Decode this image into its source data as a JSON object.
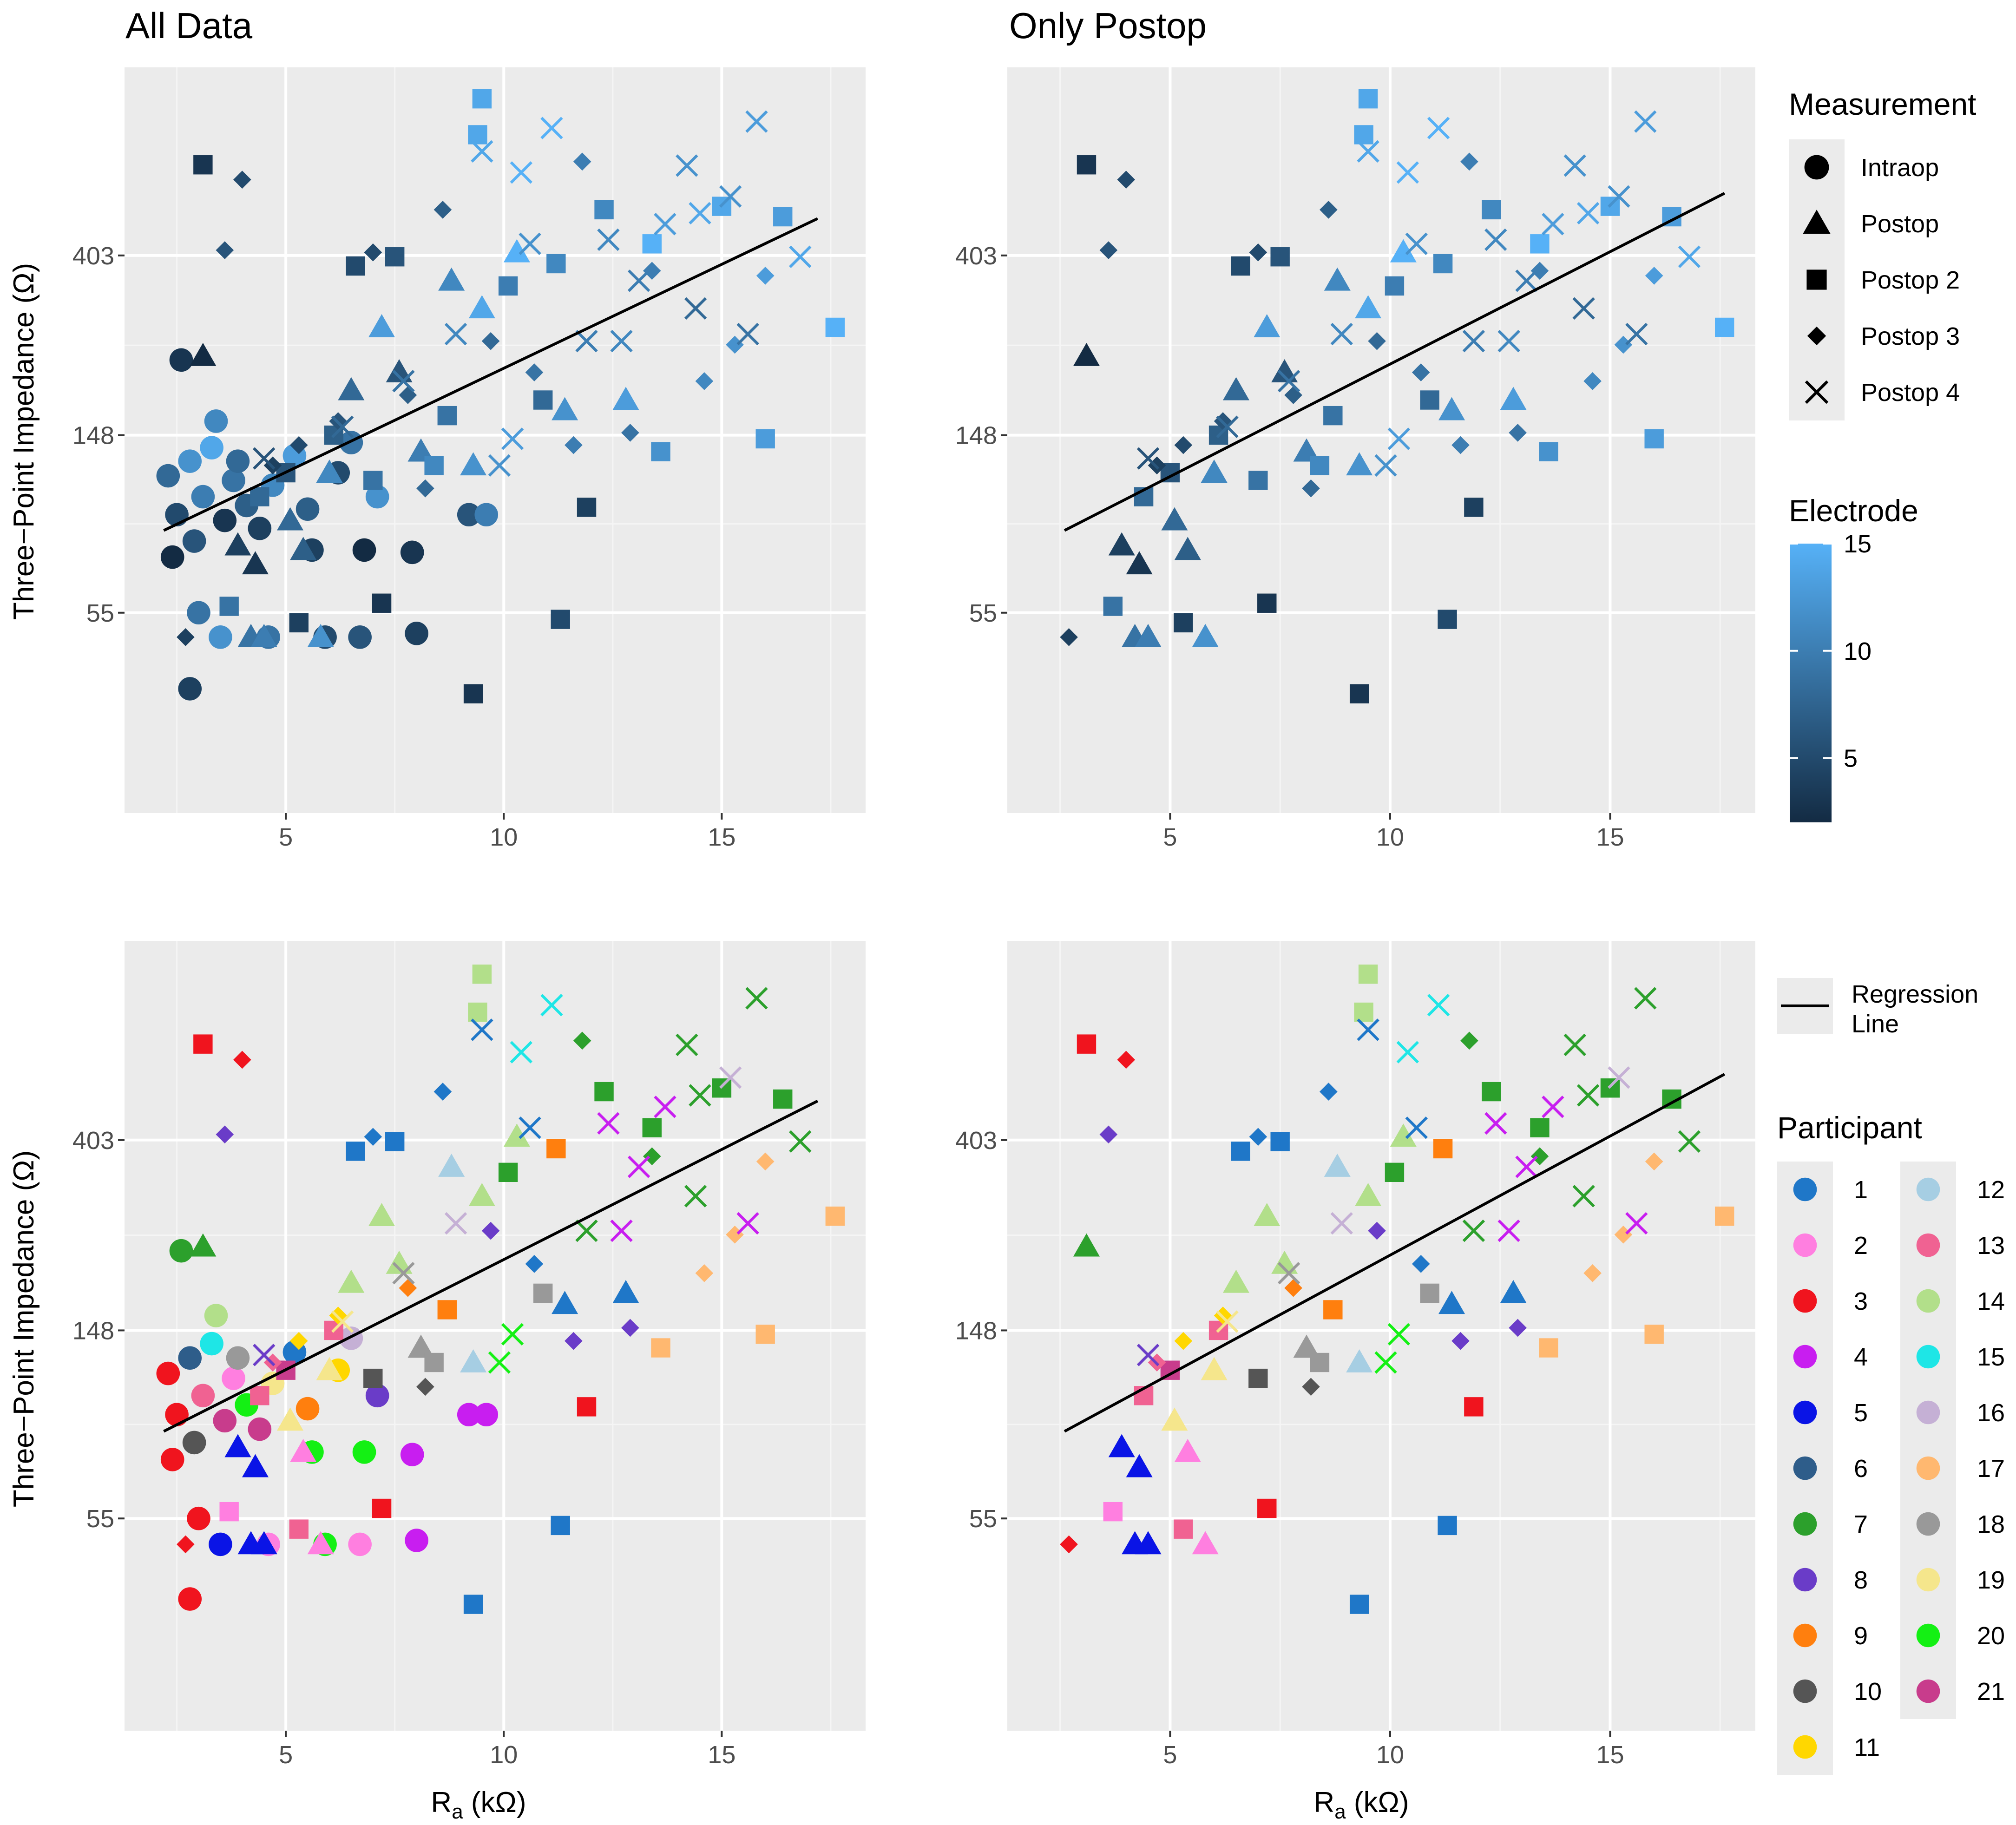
{
  "figure": {
    "panel_titles": [
      "All Data",
      "Only Postop",
      "",
      ""
    ],
    "x_axis_label_main": "R",
    "x_axis_label_sub": "a",
    "x_axis_label_unit": " (kΩ)",
    "y_axis_label": "Three−Point Impedance (Ω)"
  },
  "legends": {
    "measurement": {
      "title": "Measurement",
      "items": [
        {
          "label": "Intraop",
          "shape": "circle"
        },
        {
          "label": "Postop",
          "shape": "triangle"
        },
        {
          "label": "Postop 2",
          "shape": "square"
        },
        {
          "label": "Postop 3",
          "shape": "diamond"
        },
        {
          "label": "Postop 4",
          "shape": "x"
        }
      ]
    },
    "electrode": {
      "title": "Electrode",
      "ticks": [
        {
          "value": 15,
          "label": "15"
        },
        {
          "value": 10,
          "label": "10"
        },
        {
          "value": 5,
          "label": "5"
        }
      ],
      "range": [
        2,
        15
      ],
      "colors": [
        "#132B43",
        "#56B1F7"
      ]
    },
    "regression": {
      "label_line1": "Regression",
      "label_line2": "Line"
    },
    "participant": {
      "title": "Participant",
      "items": [
        {
          "label": "1",
          "color": "#1f77c8"
        },
        {
          "label": "2",
          "color": "#ff7fe0"
        },
        {
          "label": "3",
          "color": "#f0141e"
        },
        {
          "label": "4",
          "color": "#c81ef0"
        },
        {
          "label": "5",
          "color": "#0a14e6"
        },
        {
          "label": "6",
          "color": "#2e5d8a"
        },
        {
          "label": "7",
          "color": "#2ca02c"
        },
        {
          "label": "8",
          "color": "#6a3cc8"
        },
        {
          "label": "9",
          "color": "#ff7f0e"
        },
        {
          "label": "10",
          "color": "#555555"
        },
        {
          "label": "11",
          "color": "#ffd700"
        },
        {
          "label": "12",
          "color": "#a6cee3"
        },
        {
          "label": "13",
          "color": "#f06292"
        },
        {
          "label": "14",
          "color": "#b2df8a"
        },
        {
          "label": "15",
          "color": "#1ee6e6"
        },
        {
          "label": "16",
          "color": "#c5b0d5"
        },
        {
          "label": "17",
          "color": "#ffb870"
        },
        {
          "label": "18",
          "color": "#999999"
        },
        {
          "label": "19",
          "color": "#f5e68c"
        },
        {
          "label": "20",
          "color": "#14f014"
        },
        {
          "label": "21",
          "color": "#c83c8c"
        }
      ]
    }
  },
  "chart_data": [
    {
      "type": "scatter",
      "title": "All Data",
      "xlabel": "Ra (kΩ)",
      "ylabel": "Three−Point Impedance (Ω)",
      "xlim": [
        1.3,
        18.3
      ],
      "ylim": [
        18,
        1150
      ],
      "y_scale": "log",
      "x_ticks": [
        5,
        10,
        15
      ],
      "y_ticks": [
        55,
        148,
        403
      ],
      "regression_line": {
        "x": [
          2.2,
          17.2
        ],
        "y": [
          87,
          495
        ]
      },
      "color_by": "electrode",
      "grid": true
    },
    {
      "type": "scatter",
      "title": "Only Postop",
      "xlabel": "Ra (kΩ)",
      "ylabel": "Three−Point Impedance (Ω)",
      "xlim": [
        1.3,
        18.3
      ],
      "ylim": [
        18,
        1150
      ],
      "y_scale": "log",
      "x_ticks": [
        5,
        10,
        15
      ],
      "y_ticks": [
        55,
        148,
        403
      ],
      "regression_line": {
        "x": [
          2.6,
          17.6
        ],
        "y": [
          87,
          570
        ]
      },
      "color_by": "electrode",
      "grid": true
    },
    {
      "type": "scatter",
      "title": "",
      "xlabel": "Ra (kΩ)",
      "ylabel": "Three−Point Impedance (Ω)",
      "xlim": [
        1.3,
        18.3
      ],
      "ylim": [
        18,
        1150
      ],
      "y_scale": "log",
      "x_ticks": [
        5,
        10,
        15
      ],
      "y_ticks": [
        55,
        148,
        403
      ],
      "regression_line": {
        "x": [
          2.2,
          17.2
        ],
        "y": [
          87,
          495
        ]
      },
      "color_by": "participant",
      "grid": true
    },
    {
      "type": "scatter",
      "title": "",
      "xlabel": "Ra (kΩ)",
      "ylabel": "Three−Point Impedance (Ω)",
      "xlim": [
        1.3,
        18.3
      ],
      "ylim": [
        18,
        1150
      ],
      "y_scale": "log",
      "x_ticks": [
        5,
        10,
        15
      ],
      "y_ticks": [
        55,
        148,
        403
      ],
      "regression_line": {
        "x": [
          2.6,
          17.6
        ],
        "y": [
          87,
          570
        ]
      },
      "color_by": "participant",
      "grid": true
    }
  ],
  "points": [
    [
      2.3,
      118,
      0,
      8,
      3
    ],
    [
      2.5,
      95,
      0,
      5,
      3
    ],
    [
      2.8,
      128,
      0,
      12,
      6
    ],
    [
      3.1,
      105,
      0,
      10,
      13
    ],
    [
      3.3,
      138,
      0,
      14,
      15
    ],
    [
      3.6,
      92,
      0,
      3,
      21
    ],
    [
      2.4,
      75,
      0,
      2,
      3
    ],
    [
      2.9,
      82,
      0,
      6,
      10
    ],
    [
      3.4,
      160,
      0,
      11,
      14
    ],
    [
      3.8,
      115,
      0,
      9,
      2
    ],
    [
      4.1,
      100,
      0,
      7,
      20
    ],
    [
      4.4,
      88,
      0,
      4,
      21
    ],
    [
      2.6,
      225,
      0,
      3,
      7
    ],
    [
      3.0,
      55,
      0,
      9,
      3
    ],
    [
      2.8,
      36,
      0,
      4,
      3
    ],
    [
      3.5,
      48,
      0,
      12,
      5
    ],
    [
      4.6,
      48,
      0,
      9,
      2
    ],
    [
      5.9,
      48,
      0,
      5,
      20
    ],
    [
      6.7,
      48,
      0,
      6,
      2
    ],
    [
      8.0,
      49,
      0,
      4,
      4
    ],
    [
      5.6,
      78,
      0,
      4,
      20
    ],
    [
      6.8,
      78,
      0,
      2,
      20
    ],
    [
      7.9,
      77,
      0,
      3,
      4
    ],
    [
      9.2,
      95,
      0,
      6,
      4
    ],
    [
      9.6,
      95,
      0,
      10,
      4
    ],
    [
      3.9,
      128,
      0,
      8,
      18
    ],
    [
      4.7,
      112,
      0,
      11,
      19
    ],
    [
      5.2,
      132,
      0,
      13,
      1
    ],
    [
      5.5,
      98,
      0,
      7,
      9
    ],
    [
      6.2,
      120,
      0,
      5,
      11
    ],
    [
      6.5,
      142,
      0,
      9,
      16
    ],
    [
      7.1,
      105,
      0,
      12,
      8
    ],
    [
      9.5,
      300,
      1,
      14,
      14
    ],
    [
      4.2,
      48,
      1,
      9,
      5
    ],
    [
      4.5,
      48,
      1,
      10,
      5
    ],
    [
      5.8,
      48,
      1,
      12,
      2
    ],
    [
      6.5,
      190,
      1,
      8,
      14
    ],
    [
      7.2,
      270,
      1,
      13,
      14
    ],
    [
      8.8,
      350,
      1,
      11,
      12
    ],
    [
      11.4,
      170,
      1,
      12,
      1
    ],
    [
      12.8,
      180,
      1,
      13,
      1
    ],
    [
      3.9,
      80,
      1,
      4,
      5
    ],
    [
      4.3,
      72,
      1,
      3,
      5
    ],
    [
      5.1,
      92,
      1,
      8,
      19
    ],
    [
      6.0,
      120,
      1,
      11,
      19
    ],
    [
      8.1,
      135,
      1,
      10,
      18
    ],
    [
      9.3,
      125,
      1,
      12,
      12
    ],
    [
      7.6,
      210,
      1,
      6,
      14
    ],
    [
      10.3,
      410,
      1,
      15,
      14
    ],
    [
      5.4,
      78,
      1,
      7,
      2
    ],
    [
      3.1,
      230,
      1,
      2,
      7
    ],
    [
      3.1,
      668,
      2,
      3,
      3
    ],
    [
      9.3,
      35,
      2,
      3,
      1
    ],
    [
      11.9,
      99,
      2,
      4,
      3
    ],
    [
      11.3,
      53,
      2,
      5,
      1
    ],
    [
      7.2,
      58,
      2,
      3,
      3
    ],
    [
      5.3,
      52,
      2,
      4,
      13
    ],
    [
      3.7,
      57,
      2,
      9,
      2
    ],
    [
      16.0,
      145,
      2,
      13,
      17
    ],
    [
      17.6,
      270,
      2,
      15,
      17
    ],
    [
      15.0,
      530,
      2,
      14,
      7
    ],
    [
      13.4,
      430,
      2,
      15,
      7
    ],
    [
      9.5,
      965,
      2,
      14,
      14
    ],
    [
      9.4,
      790,
      2,
      14,
      14
    ],
    [
      11.2,
      385,
      2,
      11,
      9
    ],
    [
      10.1,
      340,
      2,
      10,
      7
    ],
    [
      10.9,
      180,
      2,
      8,
      18
    ],
    [
      6.6,
      380,
      2,
      5,
      1
    ],
    [
      7.5,
      400,
      2,
      6,
      1
    ],
    [
      12.3,
      520,
      2,
      11,
      7
    ],
    [
      13.6,
      135,
      2,
      12,
      17
    ],
    [
      8.7,
      165,
      2,
      9,
      9
    ],
    [
      6.1,
      148,
      2,
      7,
      13
    ],
    [
      5.0,
      120,
      2,
      6,
      21
    ],
    [
      4.4,
      105,
      2,
      8,
      13
    ],
    [
      7.0,
      115,
      2,
      9,
      10
    ],
    [
      8.4,
      125,
      2,
      11,
      18
    ],
    [
      16.4,
      500,
      2,
      13,
      7
    ],
    [
      4.0,
      615,
      3,
      5,
      3
    ],
    [
      2.7,
      48,
      3,
      4,
      3
    ],
    [
      3.6,
      415,
      3,
      6,
      8
    ],
    [
      7.0,
      410,
      3,
      5,
      1
    ],
    [
      8.6,
      520,
      3,
      7,
      1
    ],
    [
      11.8,
      680,
      3,
      10,
      7
    ],
    [
      12.9,
      150,
      3,
      9,
      8
    ],
    [
      13.4,
      370,
      3,
      10,
      7
    ],
    [
      14.6,
      200,
      3,
      11,
      17
    ],
    [
      15.3,
      245,
      3,
      12,
      17
    ],
    [
      16.0,
      360,
      3,
      13,
      17
    ],
    [
      9.7,
      250,
      3,
      8,
      8
    ],
    [
      10.7,
      210,
      3,
      9,
      1
    ],
    [
      6.2,
      160,
      3,
      6,
      11
    ],
    [
      5.3,
      140,
      3,
      5,
      11
    ],
    [
      4.7,
      125,
      3,
      4,
      13
    ],
    [
      7.8,
      185,
      3,
      7,
      9
    ],
    [
      11.6,
      140,
      3,
      10,
      8
    ],
    [
      8.2,
      110,
      3,
      8,
      10
    ],
    [
      15.8,
      850,
      4,
      13,
      7
    ],
    [
      14.2,
      665,
      4,
      12,
      7
    ],
    [
      11.1,
      820,
      4,
      15,
      15
    ],
    [
      14.5,
      510,
      4,
      14,
      7
    ],
    [
      15.2,
      560,
      4,
      12,
      16
    ],
    [
      13.7,
      480,
      4,
      13,
      4
    ],
    [
      12.4,
      440,
      4,
      11,
      4
    ],
    [
      13.1,
      350,
      4,
      10,
      4
    ],
    [
      15.6,
      260,
      4,
      9,
      4
    ],
    [
      14.4,
      300,
      4,
      8,
      7
    ],
    [
      9.5,
      720,
      4,
      14,
      1
    ],
    [
      10.4,
      640,
      4,
      15,
      15
    ],
    [
      10.6,
      430,
      4,
      12,
      1
    ],
    [
      7.7,
      200,
      4,
      9,
      18
    ],
    [
      8.9,
      260,
      4,
      11,
      16
    ],
    [
      9.9,
      125,
      4,
      12,
      20
    ],
    [
      10.2,
      145,
      4,
      13,
      20
    ],
    [
      4.5,
      130,
      4,
      6,
      8
    ],
    [
      6.3,
      155,
      4,
      8,
      19
    ],
    [
      11.9,
      250,
      4,
      10,
      7
    ],
    [
      16.8,
      400,
      4,
      14,
      7
    ],
    [
      12.7,
      250,
      4,
      11,
      4
    ]
  ]
}
